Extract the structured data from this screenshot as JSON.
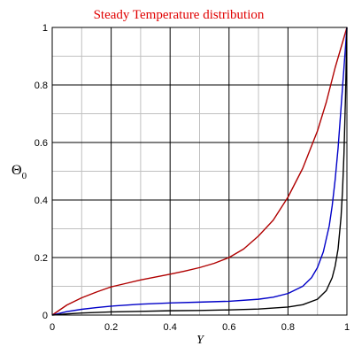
{
  "chart_data": {
    "type": "line",
    "title": "Steady Temperature distribution",
    "xlabel": "Y",
    "ylabel": "Θ",
    "ylabel_subscript": "0",
    "xlim": [
      0,
      1
    ],
    "ylim": [
      0,
      1
    ],
    "x_ticks": [
      "0",
      "0.2",
      "0.4",
      "0.6",
      "0.8",
      "1"
    ],
    "y_ticks": [
      "0",
      "0.2",
      "0.4",
      "0.6",
      "0.8",
      "1"
    ],
    "grid": true,
    "legend": "none",
    "colors": {
      "title": "#e00000",
      "major_grid": "#000000",
      "minor_grid": "#c0c0c0",
      "series": [
        "#b00000",
        "#0000c8",
        "#000000"
      ]
    },
    "series": [
      {
        "x": [
          0,
          0.05,
          0.1,
          0.15,
          0.2,
          0.25,
          0.3,
          0.35,
          0.4,
          0.45,
          0.5,
          0.55,
          0.6,
          0.65,
          0.7,
          0.75,
          0.8,
          0.85,
          0.9,
          0.93,
          0.96,
          0.98,
          1.0
        ],
        "y": [
          0,
          0.035,
          0.06,
          0.08,
          0.098,
          0.11,
          0.122,
          0.132,
          0.142,
          0.153,
          0.165,
          0.18,
          0.2,
          0.23,
          0.275,
          0.33,
          0.41,
          0.51,
          0.64,
          0.74,
          0.86,
          0.93,
          1.0
        ]
      },
      {
        "x": [
          0,
          0.05,
          0.1,
          0.15,
          0.2,
          0.3,
          0.4,
          0.5,
          0.6,
          0.7,
          0.75,
          0.8,
          0.85,
          0.88,
          0.9,
          0.92,
          0.94,
          0.95,
          0.96,
          0.97,
          0.98,
          0.99,
          1.0
        ],
        "y": [
          0,
          0.012,
          0.02,
          0.026,
          0.031,
          0.038,
          0.042,
          0.045,
          0.048,
          0.055,
          0.062,
          0.075,
          0.1,
          0.13,
          0.165,
          0.22,
          0.31,
          0.38,
          0.47,
          0.58,
          0.72,
          0.86,
          1.0
        ]
      },
      {
        "x": [
          0,
          0.05,
          0.1,
          0.2,
          0.3,
          0.4,
          0.5,
          0.6,
          0.7,
          0.8,
          0.85,
          0.9,
          0.93,
          0.95,
          0.96,
          0.97,
          0.98,
          0.985,
          0.99,
          0.995,
          1.0
        ],
        "y": [
          0,
          0.004,
          0.007,
          0.011,
          0.013,
          0.015,
          0.016,
          0.018,
          0.021,
          0.028,
          0.036,
          0.055,
          0.085,
          0.13,
          0.17,
          0.23,
          0.34,
          0.43,
          0.56,
          0.75,
          1.0
        ]
      }
    ]
  }
}
